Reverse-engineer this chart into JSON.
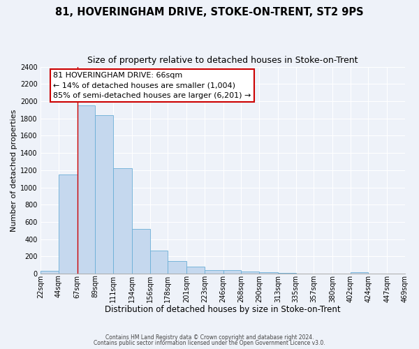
{
  "title": "81, HOVERINGHAM DRIVE, STOKE-ON-TRENT, ST2 9PS",
  "subtitle": "Size of property relative to detached houses in Stoke-on-Trent",
  "xlabel": "Distribution of detached houses by size in Stoke-on-Trent",
  "ylabel": "Number of detached properties",
  "bin_edges": [
    22,
    44,
    67,
    89,
    111,
    134,
    156,
    178,
    201,
    223,
    246,
    268,
    290,
    313,
    335,
    357,
    380,
    402,
    424,
    447,
    469
  ],
  "bin_labels": [
    "22sqm",
    "44sqm",
    "67sqm",
    "89sqm",
    "111sqm",
    "134sqm",
    "156sqm",
    "178sqm",
    "201sqm",
    "223sqm",
    "246sqm",
    "268sqm",
    "290sqm",
    "313sqm",
    "335sqm",
    "357sqm",
    "380sqm",
    "402sqm",
    "424sqm",
    "447sqm",
    "469sqm"
  ],
  "bar_heights": [
    30,
    1150,
    1950,
    1840,
    1220,
    520,
    265,
    148,
    80,
    45,
    40,
    25,
    15,
    5,
    3,
    2,
    1,
    15,
    1,
    1
  ],
  "bar_color": "#c5d8ee",
  "bar_edge_color": "#6aaed6",
  "ylim": [
    0,
    2400
  ],
  "yticks": [
    0,
    200,
    400,
    600,
    800,
    1000,
    1200,
    1400,
    1600,
    1800,
    2000,
    2200,
    2400
  ],
  "property_line_x": 67,
  "property_line_color": "#cc0000",
  "annotation_line1": "81 HOVERINGHAM DRIVE: 66sqm",
  "annotation_line2": "← 14% of detached houses are smaller (1,004)",
  "annotation_line3": "85% of semi-detached houses are larger (6,201) →",
  "footer_line1": "Contains HM Land Registry data © Crown copyright and database right 2024.",
  "footer_line2": "Contains public sector information licensed under the Open Government Licence v3.0.",
  "background_color": "#eef2f9",
  "plot_bg_color": "#eef2f9",
  "grid_color": "#ffffff",
  "title_fontsize": 10.5,
  "subtitle_fontsize": 9,
  "xlabel_fontsize": 8.5,
  "ylabel_fontsize": 8,
  "tick_labelsize": 7,
  "annot_fontsize": 8
}
